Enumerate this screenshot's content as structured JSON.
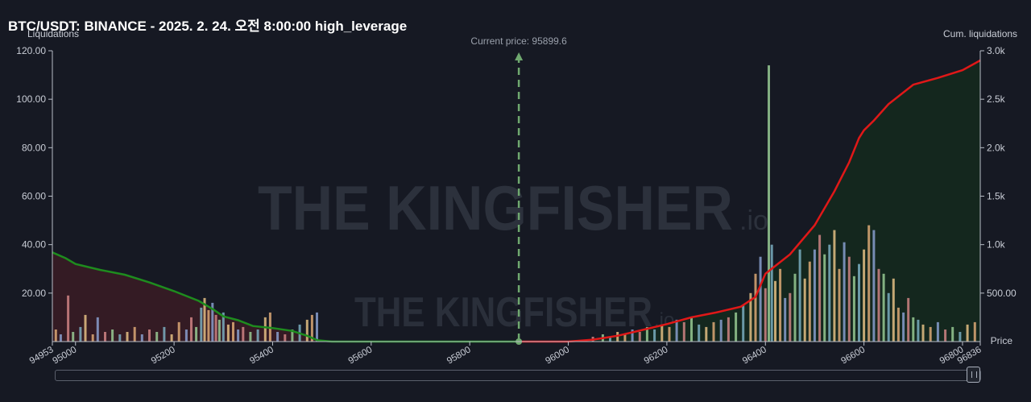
{
  "title": "BTC/USDT: BINANCE - 2025. 2. 24. 오전 8:00:00 high_leverage",
  "watermark": "THE KINGFISHER",
  "watermark_suffix": ".io",
  "colors": {
    "background": "#161923",
    "long_line": "#1e8c1e",
    "long_fill": "#3a1c24",
    "short_line": "#e01818",
    "short_fill": "#14281f",
    "current_price_line": "#6fa86f",
    "bar_colors": [
      "#e8b27a",
      "#8fa6d8",
      "#d98a8a",
      "#9fd49a",
      "#7fb7c9",
      "#f0c98a"
    ]
  },
  "chart_data": {
    "type": "bar",
    "x_range": [
      94953,
      96836
    ],
    "x_ticks": [
      "94953",
      "95000",
      "95200",
      "95400",
      "95600",
      "95800",
      "96000",
      "96200",
      "96400",
      "96600",
      "96800",
      "96836"
    ],
    "xlabel": "Price",
    "ylabel_left": "Liquidations",
    "ylabel_right": "Cum. liquidations",
    "ylim_left": [
      0,
      120
    ],
    "ylim_right": [
      0,
      3000
    ],
    "y_ticks_left": [
      "20.00",
      "40.00",
      "60.00",
      "80.00",
      "100.00",
      "120.00"
    ],
    "y_ticks_right": [
      "500.00",
      "1.0k",
      "1.5k",
      "2.0k",
      "2.5k",
      "3.0k"
    ],
    "current_price_label": "Current price: 95899.6",
    "current_price": 95899.6,
    "cumulative_long": {
      "x": [
        94953,
        94980,
        95000,
        95050,
        95100,
        95150,
        95200,
        95250,
        95280,
        95300,
        95330,
        95360,
        95400,
        95440,
        95470,
        95490,
        95520,
        95600,
        95899.6
      ],
      "y": [
        920,
        860,
        800,
        740,
        690,
        610,
        520,
        420,
        330,
        260,
        220,
        160,
        140,
        110,
        60,
        15,
        0,
        0,
        0
      ]
    },
    "cumulative_short": {
      "x": [
        95899.6,
        96000,
        96050,
        96100,
        96150,
        96200,
        96250,
        96300,
        96350,
        96380,
        96390,
        96400,
        96420,
        96450,
        96500,
        96540,
        96570,
        96590,
        96600,
        96620,
        96650,
        96700,
        96750,
        96800,
        96836
      ],
      "y": [
        0,
        0,
        20,
        60,
        120,
        180,
        250,
        300,
        360,
        460,
        580,
        700,
        780,
        900,
        1200,
        1550,
        1850,
        2100,
        2180,
        2280,
        2450,
        2650,
        2720,
        2800,
        2900
      ]
    },
    "liquidation_bars": [
      {
        "x": 94960,
        "y": 5
      },
      {
        "x": 94970,
        "y": 3
      },
      {
        "x": 94985,
        "y": 19
      },
      {
        "x": 94995,
        "y": 4
      },
      {
        "x": 95010,
        "y": 6
      },
      {
        "x": 95020,
        "y": 11
      },
      {
        "x": 95035,
        "y": 3
      },
      {
        "x": 95045,
        "y": 10
      },
      {
        "x": 95060,
        "y": 4
      },
      {
        "x": 95075,
        "y": 5
      },
      {
        "x": 95090,
        "y": 3
      },
      {
        "x": 95105,
        "y": 4
      },
      {
        "x": 95120,
        "y": 6
      },
      {
        "x": 95135,
        "y": 3
      },
      {
        "x": 95150,
        "y": 5
      },
      {
        "x": 95165,
        "y": 4
      },
      {
        "x": 95180,
        "y": 6
      },
      {
        "x": 95195,
        "y": 3
      },
      {
        "x": 95210,
        "y": 8
      },
      {
        "x": 95225,
        "y": 5
      },
      {
        "x": 95235,
        "y": 10
      },
      {
        "x": 95245,
        "y": 6
      },
      {
        "x": 95255,
        "y": 14
      },
      {
        "x": 95262,
        "y": 18
      },
      {
        "x": 95270,
        "y": 13
      },
      {
        "x": 95278,
        "y": 16
      },
      {
        "x": 95285,
        "y": 11
      },
      {
        "x": 95292,
        "y": 9
      },
      {
        "x": 95300,
        "y": 12
      },
      {
        "x": 95310,
        "y": 7
      },
      {
        "x": 95320,
        "y": 8
      },
      {
        "x": 95330,
        "y": 5
      },
      {
        "x": 95340,
        "y": 6
      },
      {
        "x": 95355,
        "y": 4
      },
      {
        "x": 95370,
        "y": 5
      },
      {
        "x": 95385,
        "y": 10
      },
      {
        "x": 95395,
        "y": 12
      },
      {
        "x": 95410,
        "y": 4
      },
      {
        "x": 95425,
        "y": 3
      },
      {
        "x": 95440,
        "y": 5
      },
      {
        "x": 95455,
        "y": 7
      },
      {
        "x": 95470,
        "y": 9
      },
      {
        "x": 95480,
        "y": 11
      },
      {
        "x": 95490,
        "y": 12
      },
      {
        "x": 96050,
        "y": 2
      },
      {
        "x": 96070,
        "y": 3
      },
      {
        "x": 96085,
        "y": 2
      },
      {
        "x": 96100,
        "y": 4
      },
      {
        "x": 96115,
        "y": 3
      },
      {
        "x": 96130,
        "y": 5
      },
      {
        "x": 96145,
        "y": 4
      },
      {
        "x": 96160,
        "y": 6
      },
      {
        "x": 96175,
        "y": 5
      },
      {
        "x": 96190,
        "y": 7
      },
      {
        "x": 96205,
        "y": 6
      },
      {
        "x": 96220,
        "y": 9
      },
      {
        "x": 96235,
        "y": 8
      },
      {
        "x": 96250,
        "y": 10
      },
      {
        "x": 96265,
        "y": 7
      },
      {
        "x": 96280,
        "y": 6
      },
      {
        "x": 96295,
        "y": 8
      },
      {
        "x": 96310,
        "y": 9
      },
      {
        "x": 96325,
        "y": 10
      },
      {
        "x": 96340,
        "y": 12
      },
      {
        "x": 96355,
        "y": 15
      },
      {
        "x": 96370,
        "y": 20
      },
      {
        "x": 96380,
        "y": 28
      },
      {
        "x": 96390,
        "y": 35
      },
      {
        "x": 96400,
        "y": 22
      },
      {
        "x": 96407,
        "y": 114
      },
      {
        "x": 96413,
        "y": 40
      },
      {
        "x": 96420,
        "y": 25
      },
      {
        "x": 96430,
        "y": 30
      },
      {
        "x": 96440,
        "y": 18
      },
      {
        "x": 96450,
        "y": 20
      },
      {
        "x": 96460,
        "y": 28
      },
      {
        "x": 96470,
        "y": 38
      },
      {
        "x": 96480,
        "y": 26
      },
      {
        "x": 96490,
        "y": 33
      },
      {
        "x": 96500,
        "y": 38
      },
      {
        "x": 96510,
        "y": 44
      },
      {
        "x": 96520,
        "y": 36
      },
      {
        "x": 96530,
        "y": 40
      },
      {
        "x": 96540,
        "y": 46
      },
      {
        "x": 96550,
        "y": 30
      },
      {
        "x": 96560,
        "y": 41
      },
      {
        "x": 96570,
        "y": 35
      },
      {
        "x": 96580,
        "y": 27
      },
      {
        "x": 96590,
        "y": 32
      },
      {
        "x": 96600,
        "y": 38
      },
      {
        "x": 96610,
        "y": 48
      },
      {
        "x": 96620,
        "y": 46
      },
      {
        "x": 96630,
        "y": 30
      },
      {
        "x": 96640,
        "y": 28
      },
      {
        "x": 96650,
        "y": 20
      },
      {
        "x": 96660,
        "y": 26
      },
      {
        "x": 96670,
        "y": 14
      },
      {
        "x": 96680,
        "y": 12
      },
      {
        "x": 96690,
        "y": 18
      },
      {
        "x": 96700,
        "y": 10
      },
      {
        "x": 96710,
        "y": 9
      },
      {
        "x": 96720,
        "y": 7
      },
      {
        "x": 96735,
        "y": 6
      },
      {
        "x": 96750,
        "y": 8
      },
      {
        "x": 96765,
        "y": 5
      },
      {
        "x": 96780,
        "y": 6
      },
      {
        "x": 96795,
        "y": 4
      },
      {
        "x": 96810,
        "y": 7
      },
      {
        "x": 96825,
        "y": 8
      }
    ]
  }
}
